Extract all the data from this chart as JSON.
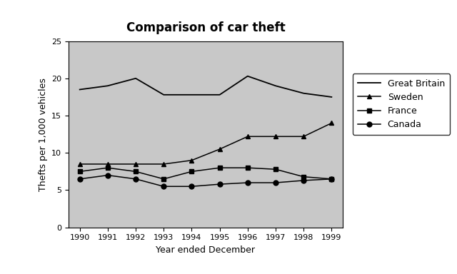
{
  "title": "Comparison of car theft",
  "xlabel": "Year ended December",
  "ylabel": "Thefts per 1,000 vehicles",
  "years": [
    1990,
    1991,
    1992,
    1993,
    1994,
    1995,
    1996,
    1997,
    1998,
    1999
  ],
  "great_britain": [
    18.5,
    19.0,
    20.0,
    17.8,
    17.8,
    17.8,
    20.3,
    19.0,
    18.0,
    17.5
  ],
  "sweden": [
    8.5,
    8.5,
    8.5,
    8.5,
    9.0,
    10.5,
    12.2,
    12.2,
    12.2,
    14.0
  ],
  "france": [
    7.5,
    8.0,
    7.5,
    6.5,
    7.5,
    8.0,
    8.0,
    7.8,
    6.8,
    6.5
  ],
  "canada": [
    6.5,
    7.0,
    6.5,
    5.5,
    5.5,
    5.8,
    6.0,
    6.0,
    6.3,
    6.5
  ],
  "ylim": [
    0,
    25
  ],
  "yticks": [
    0,
    5,
    10,
    15,
    20,
    25
  ],
  "bg_color": "#c8c8c8",
  "fig_color": "#ffffff",
  "title_fontsize": 12,
  "axis_fontsize": 9,
  "tick_fontsize": 8,
  "legend_fontsize": 9
}
